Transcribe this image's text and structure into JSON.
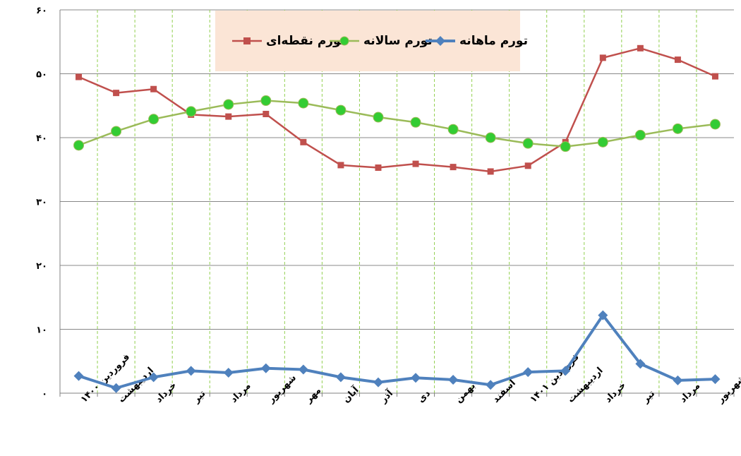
{
  "chart_data": {
    "type": "line",
    "categories": [
      "فروردین ۱۴۰۰",
      "اردیبهشت",
      "خرداد",
      "تیر",
      "مرداد",
      "شهریور",
      "مهر",
      "آبان",
      "آذر",
      "دی",
      "بهمن",
      "اسفند",
      "فروردین ۱۴۰۱",
      "اردیبهشت",
      "خرداد",
      "تیر",
      "مرداد",
      "شهریور"
    ],
    "series": [
      {
        "name": "تورم نقطه‌ای",
        "color": "#c0504d",
        "marker": "square",
        "values": [
          49.5,
          47.0,
          47.6,
          43.6,
          43.3,
          43.7,
          39.3,
          35.7,
          35.3,
          35.9,
          35.4,
          34.7,
          35.6,
          39.3,
          52.5,
          54.0,
          52.2,
          49.6
        ]
      },
      {
        "name": "تورم سالانه",
        "color": "#9bbb59",
        "marker": "circle",
        "marker_fill": "#33cc33",
        "values": [
          38.8,
          41.0,
          42.9,
          44.1,
          45.2,
          45.8,
          45.4,
          44.3,
          43.2,
          42.4,
          41.3,
          40.0,
          39.1,
          38.6,
          39.3,
          40.4,
          41.4,
          42.1
        ]
      },
      {
        "name": "تورم ماهانه",
        "color": "#4f81bd",
        "marker": "diamond",
        "values": [
          2.7,
          0.8,
          2.5,
          3.5,
          3.2,
          3.9,
          3.7,
          2.5,
          1.7,
          2.4,
          2.1,
          1.3,
          3.3,
          3.5,
          12.2,
          4.6,
          2.0,
          2.2
        ]
      }
    ],
    "y_ticks": [
      "۰",
      "۱۰",
      "۲۰",
      "۳۰",
      "۴۰",
      "۵۰",
      "۶۰"
    ],
    "ylim": [
      0,
      60
    ],
    "grid": {
      "horizontal": true,
      "vertical": true,
      "vertical_style": "dashed-green"
    },
    "legend_position": "top-center"
  }
}
